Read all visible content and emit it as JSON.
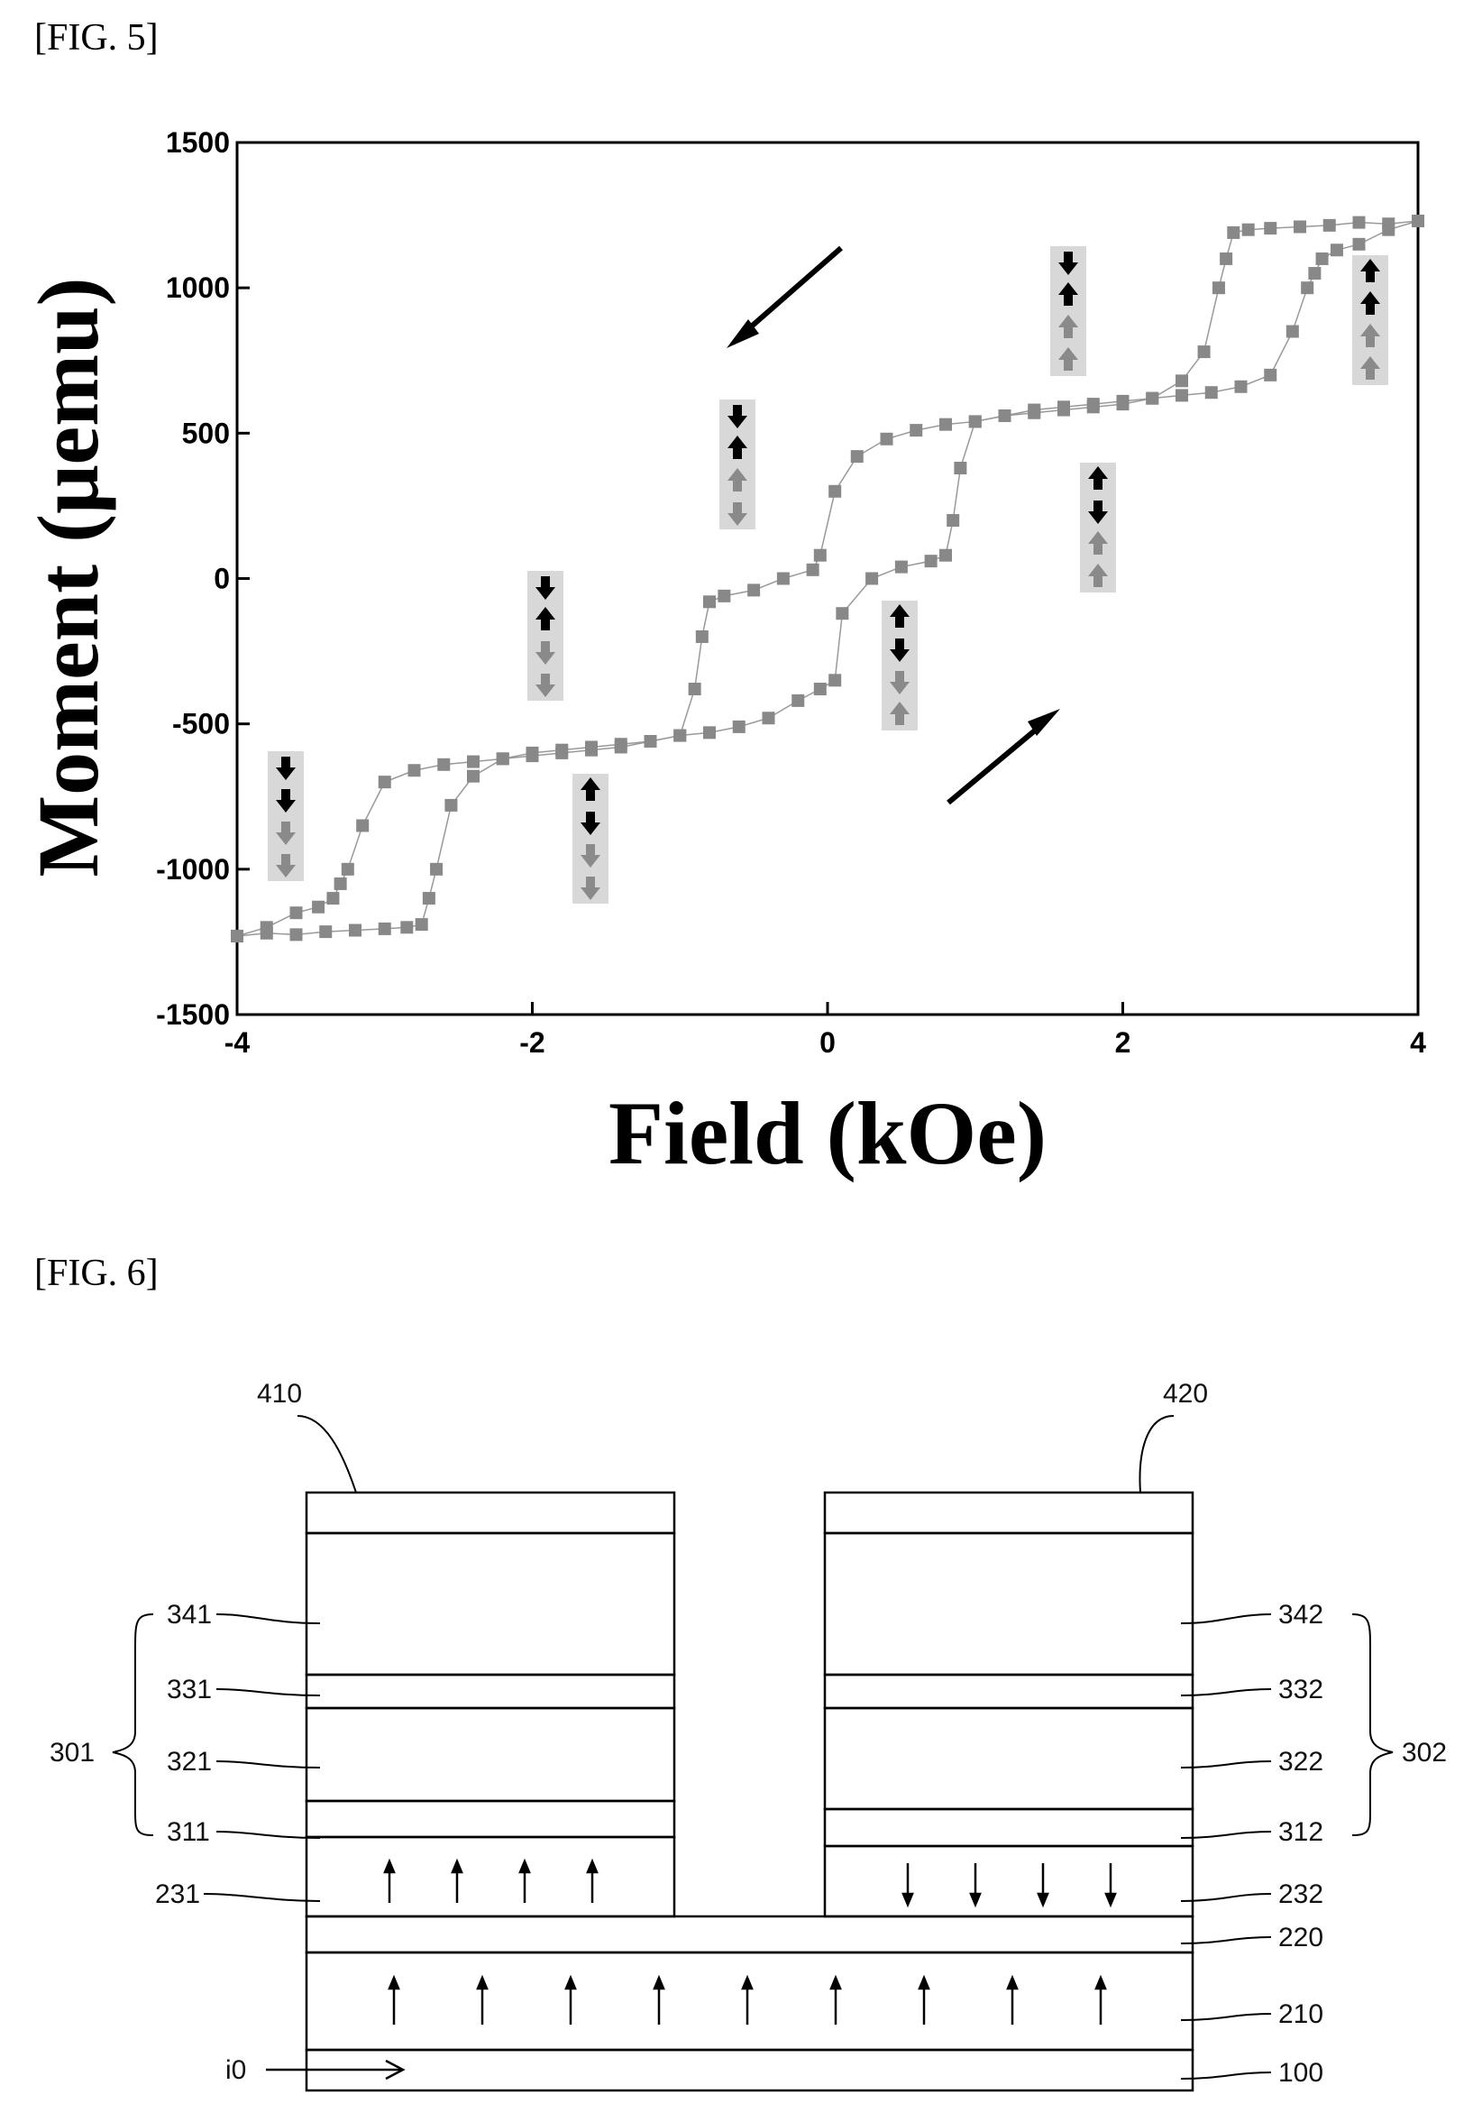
{
  "fig5": {
    "label": "[FIG. 5]",
    "chart_data": {
      "type": "scatter",
      "xlabel": "Field (kOe)",
      "ylabel": "Moment (μemu)",
      "xlim": [
        -4,
        4
      ],
      "ylim": [
        -1500,
        1500
      ],
      "x_ticks": [
        "-4",
        "-2",
        "0",
        "2",
        "4"
      ],
      "y_ticks": [
        "1500",
        "1000",
        "500",
        "0",
        "-500",
        "-1000",
        "-1500"
      ],
      "grid": false,
      "marker_color": "#888888",
      "series": [
        {
          "x": [
            4.0,
            3.8,
            3.6,
            3.4,
            3.2,
            3.0,
            2.85,
            2.75,
            2.7,
            2.65,
            2.55,
            2.4,
            2.2,
            2.0,
            1.8,
            1.6,
            1.4,
            1.2,
            1.0,
            0.8,
            0.6,
            0.4,
            0.2,
            0.05,
            -0.05,
            -0.1,
            -0.3,
            -0.5,
            -0.7,
            -0.8,
            -0.85,
            -0.9,
            -1.0,
            -1.2,
            -1.4,
            -1.6,
            -1.8,
            -2.0,
            -2.2,
            -2.4,
            -2.6,
            -2.8,
            -3.0,
            -3.15,
            -3.25,
            -3.3,
            -3.35,
            -3.45,
            -3.6,
            -3.8,
            -4.0
          ],
          "y": [
            1230,
            1220,
            1225,
            1215,
            1210,
            1205,
            1200,
            1190,
            1100,
            1000,
            780,
            680,
            620,
            600,
            590,
            580,
            570,
            560,
            540,
            530,
            510,
            480,
            420,
            300,
            80,
            30,
            0,
            -40,
            -60,
            -80,
            -200,
            -380,
            -540,
            -560,
            -580,
            -590,
            -600,
            -610,
            -620,
            -630,
            -640,
            -660,
            -700,
            -850,
            -1000,
            -1050,
            -1100,
            -1130,
            -1150,
            -1200,
            -1230
          ]
        },
        {
          "x": [
            -4.0,
            -3.8,
            -3.6,
            -3.4,
            -3.2,
            -3.0,
            -2.85,
            -2.75,
            -2.7,
            -2.65,
            -2.55,
            -2.4,
            -2.2,
            -2.0,
            -1.8,
            -1.6,
            -1.4,
            -1.2,
            -1.0,
            -0.8,
            -0.6,
            -0.4,
            -0.2,
            -0.05,
            0.05,
            0.1,
            0.3,
            0.5,
            0.7,
            0.8,
            0.85,
            0.9,
            1.0,
            1.2,
            1.4,
            1.6,
            1.8,
            2.0,
            2.2,
            2.4,
            2.6,
            2.8,
            3.0,
            3.15,
            3.25,
            3.3,
            3.35,
            3.45,
            3.6,
            3.8,
            4.0
          ],
          "y": [
            -1230,
            -1220,
            -1225,
            -1215,
            -1210,
            -1205,
            -1200,
            -1190,
            -1100,
            -1000,
            -780,
            -680,
            -620,
            -600,
            -590,
            -580,
            -570,
            -560,
            -540,
            -530,
            -510,
            -480,
            -420,
            -380,
            -350,
            -120,
            0,
            40,
            60,
            80,
            200,
            380,
            540,
            560,
            580,
            590,
            600,
            610,
            620,
            630,
            640,
            660,
            700,
            850,
            1000,
            1050,
            1100,
            1130,
            1150,
            1200,
            1230
          ]
        }
      ]
    }
  },
  "fig6": {
    "label": "[FIG. 6]",
    "labels": {
      "l410": "410",
      "l420": "420",
      "l341": "341",
      "l331": "331",
      "l321": "321",
      "l311": "311",
      "l231": "231",
      "l301": "301",
      "l302": "302",
      "l342": "342",
      "l332": "332",
      "l322": "322",
      "l312": "312",
      "l232": "232",
      "l220": "220",
      "l210": "210",
      "l100": "100",
      "li0": "i0"
    }
  }
}
